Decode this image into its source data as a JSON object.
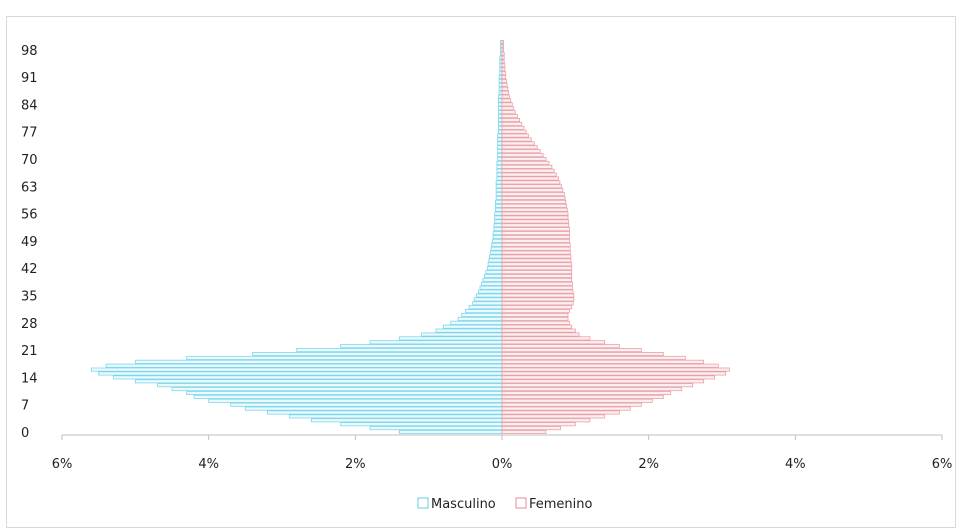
{
  "chart_data": {
    "type": "bar",
    "orientation": "horizontal",
    "title": "",
    "xlabel": "",
    "ylabel": "",
    "xlim": [
      -6,
      6
    ],
    "x_ticks": [
      -6,
      -4,
      -2,
      0,
      2,
      4,
      6
    ],
    "x_tick_labels": [
      "6%",
      "4%",
      "2%",
      "0%",
      "2%",
      "4%",
      "6%"
    ],
    "y_tick_labels": [
      "0",
      "7",
      "14",
      "21",
      "28",
      "35",
      "42",
      "49",
      "56",
      "63",
      "70",
      "77",
      "84",
      "91",
      "98"
    ],
    "categories": [
      0,
      1,
      2,
      3,
      4,
      5,
      6,
      7,
      8,
      9,
      10,
      11,
      12,
      13,
      14,
      15,
      16,
      17,
      18,
      19,
      20,
      21,
      22,
      23,
      24,
      25,
      26,
      27,
      28,
      29,
      30,
      31,
      32,
      33,
      34,
      35,
      36,
      37,
      38,
      39,
      40,
      41,
      42,
      43,
      44,
      45,
      46,
      47,
      48,
      49,
      50,
      51,
      52,
      53,
      54,
      55,
      56,
      57,
      58,
      59,
      60,
      61,
      62,
      63,
      64,
      65,
      66,
      67,
      68,
      69,
      70,
      71,
      72,
      73,
      74,
      75,
      76,
      77,
      78,
      79,
      80,
      81,
      82,
      83,
      84,
      85,
      86,
      87,
      88,
      89,
      90,
      91,
      92,
      93,
      94,
      95,
      96,
      97,
      98,
      99,
      100
    ],
    "series": [
      {
        "name": "Masculino",
        "color": "#7fd6e8",
        "values": [
          1.4,
          1.8,
          2.2,
          2.6,
          2.9,
          3.2,
          3.5,
          3.7,
          4.0,
          4.2,
          4.3,
          4.5,
          4.7,
          5.0,
          5.3,
          5.5,
          5.6,
          5.4,
          5.0,
          4.3,
          3.4,
          2.8,
          2.2,
          1.8,
          1.4,
          1.1,
          0.9,
          0.8,
          0.7,
          0.6,
          0.55,
          0.5,
          0.45,
          0.4,
          0.38,
          0.35,
          0.32,
          0.3,
          0.28,
          0.26,
          0.24,
          0.22,
          0.2,
          0.19,
          0.18,
          0.17,
          0.16,
          0.15,
          0.14,
          0.13,
          0.12,
          0.12,
          0.11,
          0.11,
          0.1,
          0.1,
          0.1,
          0.09,
          0.09,
          0.09,
          0.08,
          0.08,
          0.08,
          0.08,
          0.08,
          0.07,
          0.07,
          0.07,
          0.07,
          0.07,
          0.06,
          0.06,
          0.06,
          0.06,
          0.06,
          0.06,
          0.06,
          0.05,
          0.05,
          0.05,
          0.05,
          0.05,
          0.05,
          0.05,
          0.05,
          0.05,
          0.05,
          0.04,
          0.04,
          0.04,
          0.04,
          0.04,
          0.03,
          0.03,
          0.03,
          0.03,
          0.03,
          0.02,
          0.02,
          0.02,
          0.02
        ]
      },
      {
        "name": "Femenino",
        "color": "#e6a0a8",
        "values": [
          0.6,
          0.8,
          1.0,
          1.2,
          1.4,
          1.6,
          1.75,
          1.9,
          2.05,
          2.2,
          2.3,
          2.45,
          2.6,
          2.75,
          2.9,
          3.05,
          3.1,
          2.95,
          2.75,
          2.5,
          2.2,
          1.9,
          1.6,
          1.4,
          1.2,
          1.05,
          1.0,
          0.95,
          0.92,
          0.9,
          0.9,
          0.92,
          0.95,
          0.97,
          0.98,
          0.98,
          0.97,
          0.96,
          0.96,
          0.95,
          0.95,
          0.95,
          0.95,
          0.95,
          0.94,
          0.94,
          0.93,
          0.93,
          0.93,
          0.92,
          0.92,
          0.92,
          0.92,
          0.91,
          0.91,
          0.9,
          0.9,
          0.89,
          0.88,
          0.87,
          0.86,
          0.85,
          0.83,
          0.81,
          0.79,
          0.77,
          0.74,
          0.71,
          0.68,
          0.64,
          0.6,
          0.56,
          0.52,
          0.48,
          0.44,
          0.4,
          0.36,
          0.33,
          0.3,
          0.27,
          0.24,
          0.21,
          0.18,
          0.16,
          0.14,
          0.12,
          0.1,
          0.09,
          0.08,
          0.07,
          0.06,
          0.05,
          0.05,
          0.04,
          0.04,
          0.03,
          0.03,
          0.03,
          0.02,
          0.02,
          0.02
        ]
      }
    ],
    "legend": [
      "Masculino",
      "Femenino"
    ],
    "legend_position": "bottom",
    "grid": false
  }
}
